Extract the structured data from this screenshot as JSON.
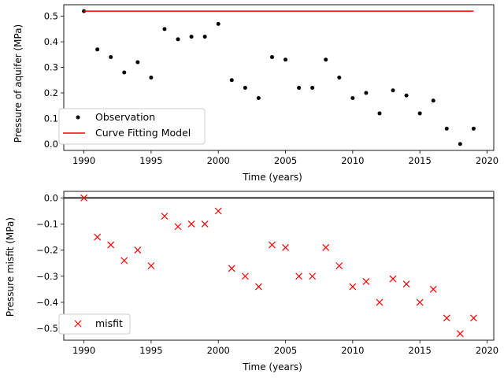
{
  "chart_data": [
    {
      "type": "scatter",
      "xlabel": "Time (years)",
      "ylabel": "Pressure of aquifer (MPa)",
      "xlim": [
        1988.5,
        2020.5
      ],
      "ylim": [
        -0.025,
        0.545
      ],
      "xticks": [
        1990,
        1995,
        2000,
        2005,
        2010,
        2015,
        2020
      ],
      "yticks": [
        0.0,
        0.1,
        0.2,
        0.3,
        0.4,
        0.5
      ],
      "ytick_labels": [
        "0.0",
        "0.1",
        "0.2",
        "0.3",
        "0.4",
        "0.5"
      ],
      "legend_position": "lower-left",
      "series": [
        {
          "name": "Observation",
          "kind": "points",
          "marker": "dot",
          "color": "#000000",
          "x": [
            1990,
            1991,
            1992,
            1993,
            1994,
            1995,
            1996,
            1997,
            1998,
            1999,
            2000,
            2001,
            2002,
            2003,
            2004,
            2005,
            2006,
            2007,
            2008,
            2009,
            2010,
            2011,
            2012,
            2013,
            2014,
            2015,
            2016,
            2017,
            2018,
            2019
          ],
          "y": [
            0.52,
            0.37,
            0.34,
            0.28,
            0.32,
            0.26,
            0.45,
            0.41,
            0.42,
            0.42,
            0.47,
            0.25,
            0.22,
            0.18,
            0.34,
            0.33,
            0.22,
            0.22,
            0.33,
            0.26,
            0.18,
            0.2,
            0.12,
            0.21,
            0.19,
            0.12,
            0.17,
            0.06,
            0.0,
            0.06
          ]
        },
        {
          "name": "Curve Fitting Model",
          "kind": "line",
          "color": "#ff0000",
          "x": [
            1990,
            2019
          ],
          "y": [
            0.52,
            0.52
          ]
        }
      ]
    },
    {
      "type": "scatter",
      "xlabel": "Time (years)",
      "ylabel": "Pressure misfit (MPa)",
      "xlim": [
        1988.5,
        2020.5
      ],
      "ylim": [
        -0.545,
        0.025
      ],
      "xticks": [
        1990,
        1995,
        2000,
        2005,
        2010,
        2015,
        2020
      ],
      "yticks": [
        0.0,
        -0.1,
        -0.2,
        -0.3,
        -0.4,
        -0.5
      ],
      "ytick_labels": [
        "0.0",
        "−0.1",
        "−0.2",
        "−0.3",
        "−0.4",
        "−0.5"
      ],
      "legend_position": "lower-left",
      "reference_line": {
        "y": 0.0,
        "color": "#000000"
      },
      "series": [
        {
          "name": "misfit",
          "kind": "points",
          "marker": "x",
          "color": "#ff0000",
          "x": [
            1990,
            1991,
            1992,
            1993,
            1994,
            1995,
            1996,
            1997,
            1998,
            1999,
            2000,
            2001,
            2002,
            2003,
            2004,
            2005,
            2006,
            2007,
            2008,
            2009,
            2010,
            2011,
            2012,
            2013,
            2014,
            2015,
            2016,
            2017,
            2018,
            2019
          ],
          "y": [
            0.0,
            -0.15,
            -0.18,
            -0.24,
            -0.2,
            -0.26,
            -0.07,
            -0.11,
            -0.1,
            -0.1,
            -0.05,
            -0.27,
            -0.3,
            -0.34,
            -0.18,
            -0.19,
            -0.3,
            -0.3,
            -0.19,
            -0.26,
            -0.34,
            -0.32,
            -0.4,
            -0.31,
            -0.33,
            -0.4,
            -0.35,
            -0.46,
            -0.52,
            -0.46
          ]
        }
      ]
    }
  ]
}
